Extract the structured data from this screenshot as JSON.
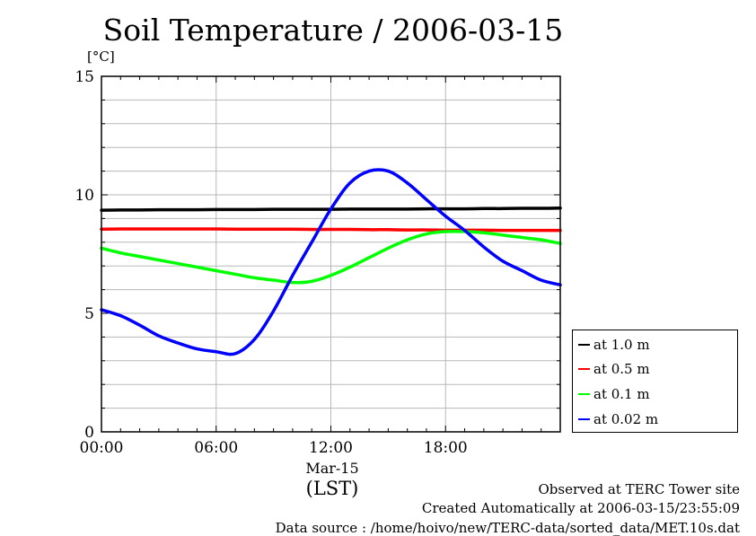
{
  "title": "Soil Temperature / 2006-03-15",
  "unit_label": "[°C]",
  "date_label": "Mar-15",
  "lst_label": "(LST)",
  "footer": {
    "line1": "Observed at TERC Tower site",
    "line2": "Created Automatically at 2006-03-15/23:55:09",
    "line3": "Data source : /home/hoivo/new/TERC-data/sorted_data/MET.10s.dat"
  },
  "chart_data": {
    "type": "line",
    "title": "Soil Temperature / 2006-03-15",
    "xlabel": "(LST)",
    "ylabel": "[°C]",
    "x_unit": "hours (LST)",
    "xlim": [
      0,
      24
    ],
    "ylim": [
      0,
      15
    ],
    "x_ticks": [
      0,
      6,
      12,
      18
    ],
    "x_tick_labels": [
      "00:00",
      "06:00",
      "12:00",
      "18:00"
    ],
    "y_ticks": [
      0,
      5,
      10,
      15
    ],
    "y_tick_labels": [
      "0",
      "5",
      "10",
      "15"
    ],
    "grid": true,
    "legend_position": "right-bottom outside",
    "x": [
      0,
      1,
      2,
      3,
      4,
      5,
      6,
      7,
      8,
      9,
      10,
      11,
      12,
      13,
      14,
      15,
      16,
      17,
      18,
      19,
      20,
      21,
      22,
      23,
      24
    ],
    "series": [
      {
        "name": "at 1.0 m",
        "color": "#000000",
        "values": [
          9.35,
          9.36,
          9.36,
          9.37,
          9.37,
          9.37,
          9.38,
          9.38,
          9.38,
          9.39,
          9.39,
          9.39,
          9.39,
          9.4,
          9.4,
          9.4,
          9.4,
          9.41,
          9.41,
          9.41,
          9.42,
          9.42,
          9.43,
          9.43,
          9.44
        ]
      },
      {
        "name": "at 0.5 m",
        "color": "#ff0000",
        "values": [
          8.55,
          8.56,
          8.56,
          8.56,
          8.56,
          8.56,
          8.56,
          8.55,
          8.55,
          8.55,
          8.55,
          8.54,
          8.54,
          8.54,
          8.53,
          8.53,
          8.52,
          8.52,
          8.51,
          8.51,
          8.51,
          8.5,
          8.5,
          8.5,
          8.5
        ]
      },
      {
        "name": "at 0.1 m",
        "color": "#00ff00",
        "values": [
          7.75,
          7.55,
          7.4,
          7.25,
          7.1,
          6.95,
          6.8,
          6.65,
          6.5,
          6.4,
          6.3,
          6.35,
          6.6,
          6.95,
          7.35,
          7.75,
          8.1,
          8.35,
          8.45,
          8.45,
          8.4,
          8.3,
          8.2,
          8.1,
          7.95
        ]
      },
      {
        "name": "at 0.02 m",
        "color": "#0000ff",
        "values": [
          5.15,
          4.9,
          4.5,
          4.05,
          3.75,
          3.5,
          3.38,
          3.3,
          3.9,
          5.1,
          6.6,
          8.0,
          9.4,
          10.5,
          11.0,
          11.0,
          10.5,
          9.8,
          9.1,
          8.5,
          7.8,
          7.2,
          6.8,
          6.4,
          6.2
        ]
      }
    ]
  }
}
